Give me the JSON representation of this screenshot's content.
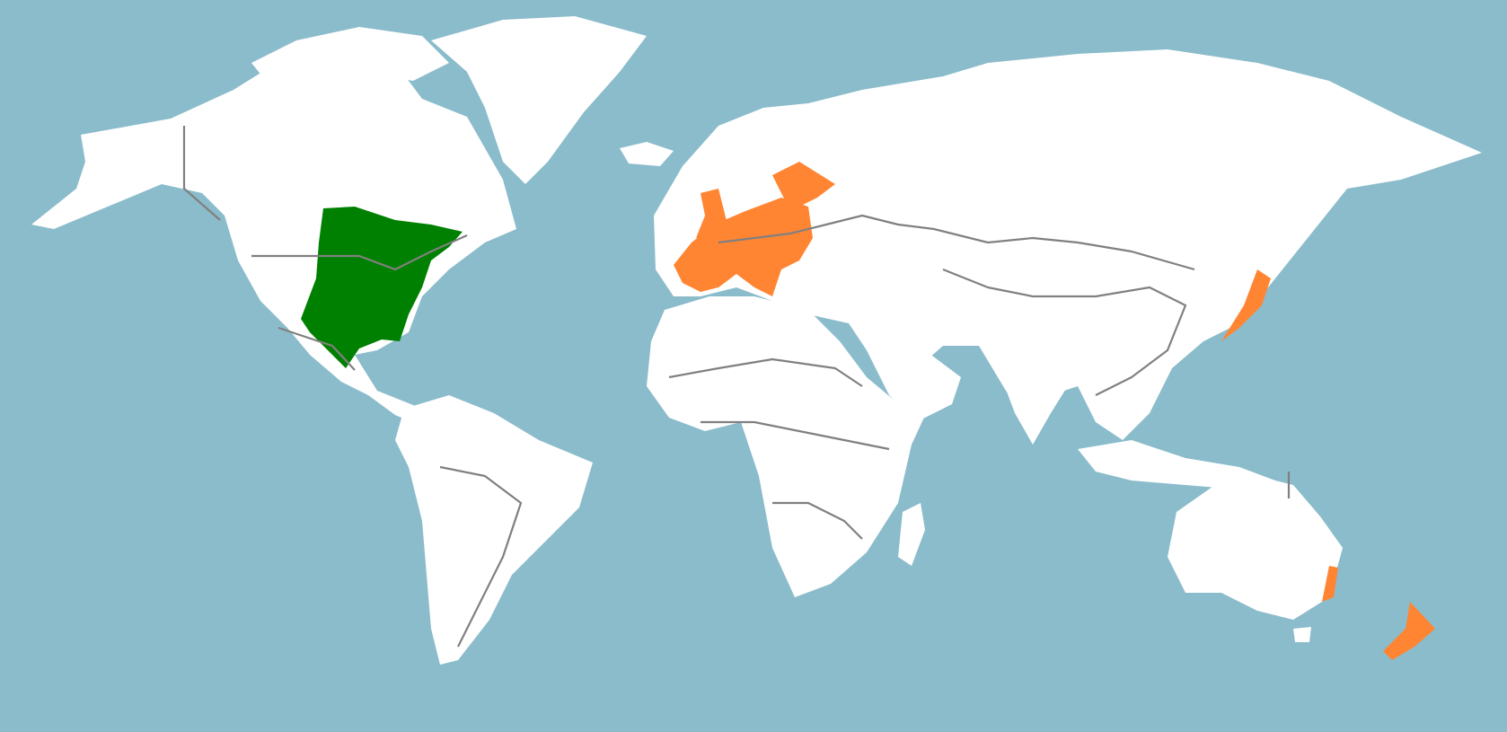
{
  "colors": {
    "ocean": "#8bbccb",
    "land": "#ffffff",
    "border": "#808080",
    "highlight_green": "#008000",
    "highlight_orange": "#ff8533"
  }
}
